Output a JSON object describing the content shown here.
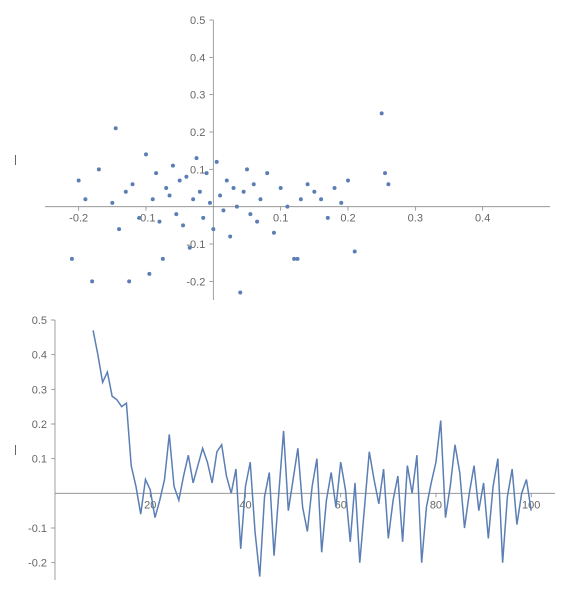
{
  "scatter_chart": {
    "type": "scatter",
    "xlim": [
      -0.25,
      0.5
    ],
    "ylim": [
      -0.25,
      0.5
    ],
    "xticks": [
      -0.2,
      -0.1,
      0.1,
      0.2,
      0.3,
      0.4
    ],
    "yticks": [
      -0.2,
      -0.1,
      0.1,
      0.2,
      0.3,
      0.4,
      0.5
    ],
    "point_radius": 2.0,
    "point_color": "#5b7eb5",
    "axis_color": "#888888",
    "label_color": "#666666",
    "label_fontsize": 11,
    "background_color": "#ffffff",
    "points": [
      [
        -0.21,
        -0.14
      ],
      [
        -0.2,
        0.07
      ],
      [
        -0.19,
        0.02
      ],
      [
        -0.18,
        -0.2
      ],
      [
        -0.17,
        0.1
      ],
      [
        -0.15,
        0.01
      ],
      [
        -0.145,
        0.21
      ],
      [
        -0.14,
        -0.06
      ],
      [
        -0.13,
        0.04
      ],
      [
        -0.125,
        -0.2
      ],
      [
        -0.12,
        0.06
      ],
      [
        -0.11,
        -0.03
      ],
      [
        -0.1,
        0.14
      ],
      [
        -0.095,
        -0.18
      ],
      [
        -0.09,
        0.02
      ],
      [
        -0.085,
        0.09
      ],
      [
        -0.08,
        -0.04
      ],
      [
        -0.075,
        -0.14
      ],
      [
        -0.07,
        0.05
      ],
      [
        -0.065,
        0.03
      ],
      [
        -0.06,
        0.11
      ],
      [
        -0.055,
        -0.02
      ],
      [
        -0.05,
        0.07
      ],
      [
        -0.045,
        -0.05
      ],
      [
        -0.04,
        0.08
      ],
      [
        -0.035,
        -0.11
      ],
      [
        -0.03,
        0.02
      ],
      [
        -0.025,
        0.13
      ],
      [
        -0.02,
        0.04
      ],
      [
        -0.015,
        -0.03
      ],
      [
        -0.01,
        0.09
      ],
      [
        -0.005,
        0.01
      ],
      [
        0.0,
        -0.06
      ],
      [
        0.005,
        0.12
      ],
      [
        0.01,
        0.03
      ],
      [
        0.015,
        -0.01
      ],
      [
        0.02,
        0.07
      ],
      [
        0.025,
        -0.08
      ],
      [
        0.03,
        0.05
      ],
      [
        0.035,
        0.0
      ],
      [
        0.04,
        -0.23
      ],
      [
        0.045,
        0.04
      ],
      [
        0.05,
        0.1
      ],
      [
        0.055,
        -0.02
      ],
      [
        0.06,
        0.06
      ],
      [
        0.065,
        -0.04
      ],
      [
        0.07,
        0.02
      ],
      [
        0.08,
        0.09
      ],
      [
        0.09,
        -0.07
      ],
      [
        0.1,
        0.05
      ],
      [
        0.11,
        0.0
      ],
      [
        0.12,
        -0.14
      ],
      [
        0.125,
        -0.14
      ],
      [
        0.13,
        0.02
      ],
      [
        0.14,
        0.06
      ],
      [
        0.15,
        0.04
      ],
      [
        0.16,
        0.02
      ],
      [
        0.17,
        -0.03
      ],
      [
        0.18,
        0.05
      ],
      [
        0.19,
        0.01
      ],
      [
        0.2,
        0.07
      ],
      [
        0.21,
        -0.12
      ],
      [
        0.25,
        0.25
      ],
      [
        0.255,
        0.09
      ],
      [
        0.26,
        0.06
      ]
    ]
  },
  "line_chart": {
    "type": "line",
    "xlim": [
      0,
      105
    ],
    "ylim": [
      -0.25,
      0.5
    ],
    "xticks": [
      20,
      40,
      60,
      80,
      100
    ],
    "yticks": [
      -0.2,
      -0.1,
      0.1,
      0.2,
      0.3,
      0.4,
      0.5
    ],
    "line_color": "#5b7eb5",
    "line_width": 1.5,
    "axis_color": "#888888",
    "label_color": "#666666",
    "label_fontsize": 11,
    "background_color": "#ffffff",
    "series": [
      [
        8,
        0.47
      ],
      [
        9,
        0.4
      ],
      [
        10,
        0.32
      ],
      [
        11,
        0.35
      ],
      [
        12,
        0.28
      ],
      [
        13,
        0.27
      ],
      [
        14,
        0.25
      ],
      [
        15,
        0.26
      ],
      [
        16,
        0.08
      ],
      [
        17,
        0.02
      ],
      [
        18,
        -0.06
      ],
      [
        19,
        0.04
      ],
      [
        20,
        0.01
      ],
      [
        21,
        -0.07
      ],
      [
        22,
        -0.02
      ],
      [
        23,
        0.04
      ],
      [
        24,
        0.17
      ],
      [
        25,
        0.02
      ],
      [
        26,
        -0.02
      ],
      [
        27,
        0.05
      ],
      [
        28,
        0.11
      ],
      [
        29,
        0.03
      ],
      [
        30,
        0.08
      ],
      [
        31,
        0.13
      ],
      [
        32,
        0.09
      ],
      [
        33,
        0.03
      ],
      [
        34,
        0.12
      ],
      [
        35,
        0.14
      ],
      [
        36,
        0.05
      ],
      [
        37,
        0.0
      ],
      [
        38,
        0.07
      ],
      [
        39,
        -0.16
      ],
      [
        40,
        0.02
      ],
      [
        41,
        0.09
      ],
      [
        42,
        -0.11
      ],
      [
        43,
        -0.24
      ],
      [
        44,
        -0.01
      ],
      [
        45,
        0.06
      ],
      [
        46,
        -0.18
      ],
      [
        47,
        0.0
      ],
      [
        48,
        0.18
      ],
      [
        49,
        -0.05
      ],
      [
        50,
        0.04
      ],
      [
        51,
        0.13
      ],
      [
        52,
        -0.04
      ],
      [
        53,
        -0.11
      ],
      [
        54,
        0.02
      ],
      [
        55,
        0.1
      ],
      [
        56,
        -0.17
      ],
      [
        57,
        -0.02
      ],
      [
        58,
        0.06
      ],
      [
        59,
        -0.04
      ],
      [
        60,
        0.09
      ],
      [
        61,
        0.01
      ],
      [
        62,
        -0.14
      ],
      [
        63,
        0.03
      ],
      [
        64,
        -0.2
      ],
      [
        65,
        -0.04
      ],
      [
        66,
        0.12
      ],
      [
        67,
        0.04
      ],
      [
        68,
        -0.03
      ],
      [
        69,
        0.07
      ],
      [
        70,
        -0.13
      ],
      [
        71,
        -0.02
      ],
      [
        72,
        0.05
      ],
      [
        73,
        -0.14
      ],
      [
        74,
        0.08
      ],
      [
        75,
        0.0
      ],
      [
        76,
        0.11
      ],
      [
        77,
        -0.2
      ],
      [
        78,
        -0.04
      ],
      [
        79,
        0.03
      ],
      [
        80,
        0.09
      ],
      [
        81,
        0.21
      ],
      [
        82,
        -0.07
      ],
      [
        83,
        0.02
      ],
      [
        84,
        0.14
      ],
      [
        85,
        0.06
      ],
      [
        86,
        -0.1
      ],
      [
        87,
        0.0
      ],
      [
        88,
        0.08
      ],
      [
        89,
        -0.05
      ],
      [
        90,
        0.03
      ],
      [
        91,
        -0.13
      ],
      [
        92,
        0.02
      ],
      [
        93,
        0.1
      ],
      [
        94,
        -0.2
      ],
      [
        95,
        -0.01
      ],
      [
        96,
        0.07
      ],
      [
        97,
        -0.09
      ],
      [
        98,
        0.0
      ],
      [
        99,
        0.04
      ],
      [
        100,
        -0.05
      ]
    ]
  }
}
